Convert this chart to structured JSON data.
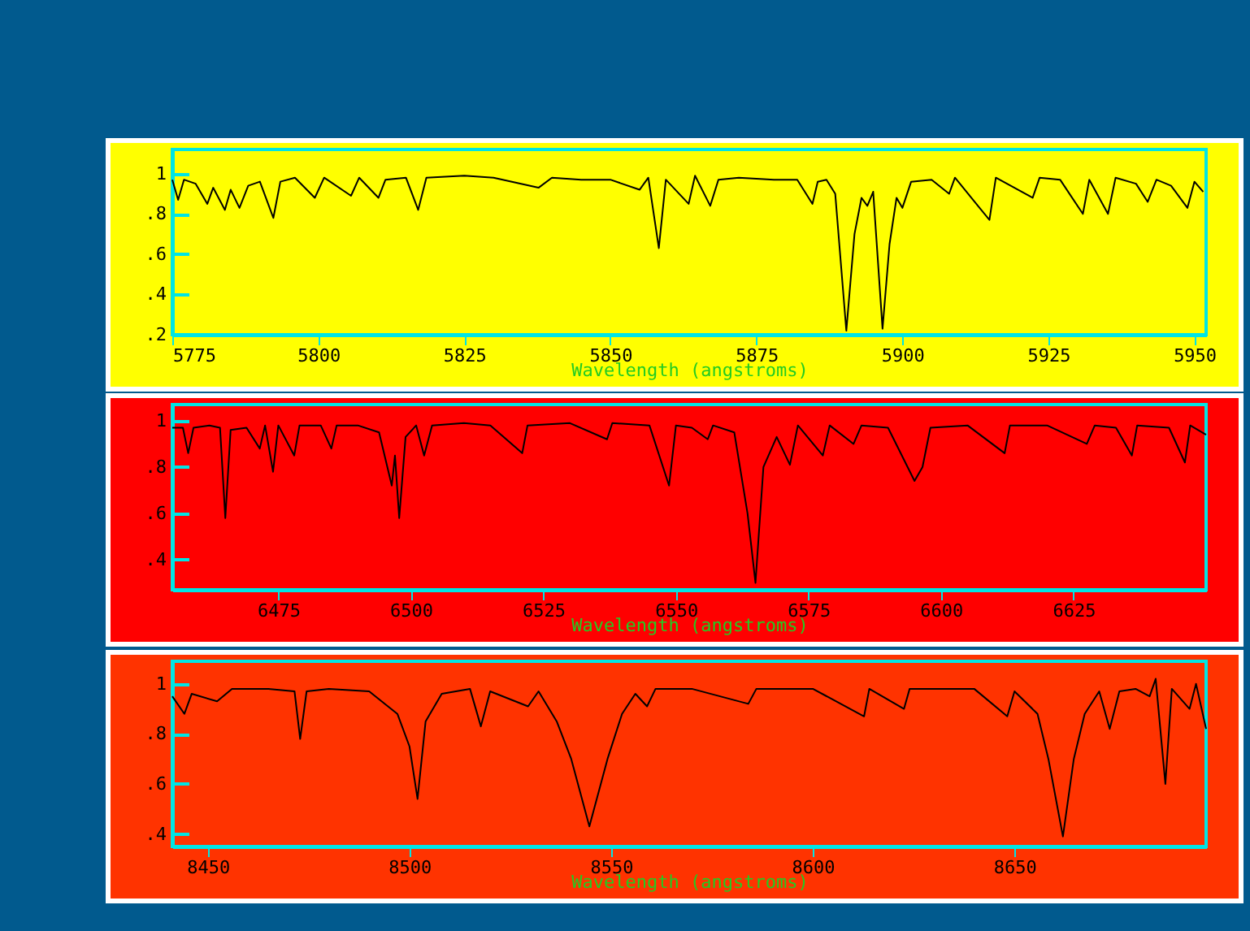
{
  "chart_data": [
    {
      "type": "line",
      "xlabel": "Wavelength (angstroms)",
      "xlim": [
        5775,
        5952
      ],
      "xticks": [
        5775,
        5800,
        5825,
        5850,
        5875,
        5900,
        5925,
        5950
      ],
      "ylim": [
        0.2,
        1.12
      ],
      "yticks": [
        {
          "value": 0.2,
          "label": ".2"
        },
        {
          "value": 0.4,
          "label": ".4"
        },
        {
          "value": 0.6,
          "label": ".6"
        },
        {
          "value": 0.8,
          "label": ".8"
        },
        {
          "value": 1,
          "label": "1"
        }
      ],
      "grid": false,
      "series": [
        {
          "color": "#000000",
          "x": [
            5775,
            5776,
            5777,
            5779,
            5781,
            5782,
            5784,
            5785,
            5786.5,
            5788,
            5790,
            5792.3,
            5793.5,
            5796,
            5799.4,
            5801,
            5805.6,
            5807,
            5810.3,
            5811.5,
            5815,
            5817.1,
            5818.5,
            5825,
            5830,
            5837.7,
            5840,
            5845,
            5850,
            5855,
            5856.5,
            5858.3,
            5859.5,
            5863.4,
            5864.5,
            5867.1,
            5868.5,
            5872,
            5878,
            5882,
            5884.6,
            5885.5,
            5887,
            5888.5,
            5890.4,
            5891.8,
            5893,
            5894,
            5895,
            5896.6,
            5897.8,
            5899,
            5900,
            5901.5,
            5905,
            5908,
            5909,
            5914.9,
            5916,
            5922.3,
            5923.5,
            5927,
            5930.9,
            5932,
            5935.2,
            5936.5,
            5940,
            5942,
            5943.5,
            5946,
            5948.8,
            5950,
            5951.5
          ],
          "values": [
            0.97,
            0.87,
            0.97,
            0.95,
            0.85,
            0.93,
            0.82,
            0.92,
            0.83,
            0.94,
            0.96,
            0.78,
            0.96,
            0.98,
            0.88,
            0.98,
            0.89,
            0.98,
            0.88,
            0.97,
            0.98,
            0.82,
            0.98,
            0.99,
            0.98,
            0.93,
            0.98,
            0.97,
            0.97,
            0.92,
            0.98,
            0.63,
            0.97,
            0.85,
            0.99,
            0.84,
            0.97,
            0.98,
            0.97,
            0.97,
            0.85,
            0.96,
            0.97,
            0.9,
            0.22,
            0.7,
            0.88,
            0.84,
            0.91,
            0.23,
            0.65,
            0.88,
            0.83,
            0.96,
            0.97,
            0.9,
            0.98,
            0.77,
            0.98,
            0.88,
            0.98,
            0.97,
            0.8,
            0.97,
            0.8,
            0.98,
            0.95,
            0.86,
            0.97,
            0.94,
            0.83,
            0.96,
            0.91
          ]
        }
      ]
    },
    {
      "type": "line",
      "xlabel": "Wavelength (angstroms)",
      "xlim": [
        6455,
        6650
      ],
      "xticks": [
        6475,
        6500,
        6525,
        6550,
        6575,
        6600,
        6625
      ],
      "ylim": [
        0.27,
        1.07
      ],
      "yticks": [
        {
          "value": 0.4,
          "label": ".4"
        },
        {
          "value": 0.6,
          "label": ".6"
        },
        {
          "value": 0.8,
          "label": ".8"
        },
        {
          "value": 1,
          "label": "1"
        }
      ],
      "grid": false,
      "series": [
        {
          "color": "#000000",
          "x": [
            6455,
            6457,
            6458,
            6459,
            6462,
            6464,
            6465,
            6466,
            6469,
            6471.5,
            6472.5,
            6474,
            6475,
            6478,
            6479,
            6483,
            6485,
            6486,
            6490,
            6494,
            6496.4,
            6497,
            6497.8,
            6499,
            6501,
            6502.5,
            6504,
            6510,
            6515,
            6521,
            6522,
            6530,
            6537,
            6538,
            6545,
            6548.7,
            6550,
            6553,
            6556,
            6557,
            6561,
            6563.5,
            6565,
            6566.5,
            6569,
            6571.5,
            6573,
            6577.7,
            6579,
            6583.5,
            6585,
            6590,
            6595,
            6596.5,
            6598,
            6605,
            6612,
            6613,
            6620,
            6627.5,
            6629,
            6633,
            6636,
            6637,
            6643,
            6646,
            6647,
            6650
          ],
          "values": [
            0.97,
            0.97,
            0.86,
            0.97,
            0.98,
            0.97,
            0.58,
            0.96,
            0.97,
            0.88,
            0.98,
            0.78,
            0.98,
            0.85,
            0.98,
            0.98,
            0.88,
            0.98,
            0.98,
            0.95,
            0.72,
            0.85,
            0.58,
            0.93,
            0.98,
            0.85,
            0.98,
            0.99,
            0.98,
            0.86,
            0.98,
            0.99,
            0.92,
            0.99,
            0.98,
            0.72,
            0.98,
            0.97,
            0.92,
            0.98,
            0.95,
            0.6,
            0.3,
            0.8,
            0.93,
            0.81,
            0.98,
            0.85,
            0.98,
            0.9,
            0.98,
            0.97,
            0.74,
            0.8,
            0.97,
            0.98,
            0.86,
            0.98,
            0.98,
            0.9,
            0.98,
            0.97,
            0.85,
            0.98,
            0.97,
            0.82,
            0.98,
            0.94
          ]
        }
      ]
    },
    {
      "type": "line",
      "xlabel": "Wavelength (angstroms)",
      "xlim": [
        8441.2,
        8697.5
      ],
      "xticks": [
        8450,
        8500,
        8550,
        8600,
        8650
      ],
      "ylim": [
        0.35,
        1.09
      ],
      "yticks": [
        {
          "value": 0.4,
          "label": ".4"
        },
        {
          "value": 0.6,
          "label": ".6"
        },
        {
          "value": 0.8,
          "label": ".8"
        },
        {
          "value": 1,
          "label": "1"
        }
      ],
      "grid": false,
      "series": [
        {
          "color": "#000000",
          "x": [
            8441.2,
            8444.2,
            8446,
            8452.3,
            8456,
            8465,
            8471.5,
            8472.9,
            8474.5,
            8480,
            8490,
            8497,
            8500,
            8502,
            8504,
            8508,
            8515,
            8517.7,
            8520,
            8529.4,
            8532,
            8536.5,
            8540.1,
            8544.6,
            8549.1,
            8552.7,
            8556,
            8558.9,
            8561,
            8570,
            8584,
            8586,
            8600,
            8612.7,
            8614,
            8622.6,
            8624,
            8640,
            8648.2,
            8650,
            8655.7,
            8658.4,
            8662,
            8664.7,
            8667.4,
            8671,
            8673.6,
            8676,
            8680,
            8683.5,
            8685,
            8687.4,
            8689,
            8693.4,
            8695,
            8697.5
          ],
          "values": [
            0.95,
            0.88,
            0.96,
            0.93,
            0.98,
            0.98,
            0.97,
            0.78,
            0.97,
            0.98,
            0.97,
            0.88,
            0.75,
            0.54,
            0.85,
            0.96,
            0.98,
            0.83,
            0.97,
            0.91,
            0.97,
            0.85,
            0.7,
            0.43,
            0.7,
            0.88,
            0.96,
            0.91,
            0.98,
            0.98,
            0.92,
            0.98,
            0.98,
            0.87,
            0.98,
            0.9,
            0.98,
            0.98,
            0.87,
            0.97,
            0.88,
            0.7,
            0.39,
            0.7,
            0.88,
            0.97,
            0.82,
            0.97,
            0.98,
            0.95,
            1.02,
            0.6,
            0.98,
            0.9,
            1.0,
            0.82
          ]
        }
      ]
    }
  ]
}
